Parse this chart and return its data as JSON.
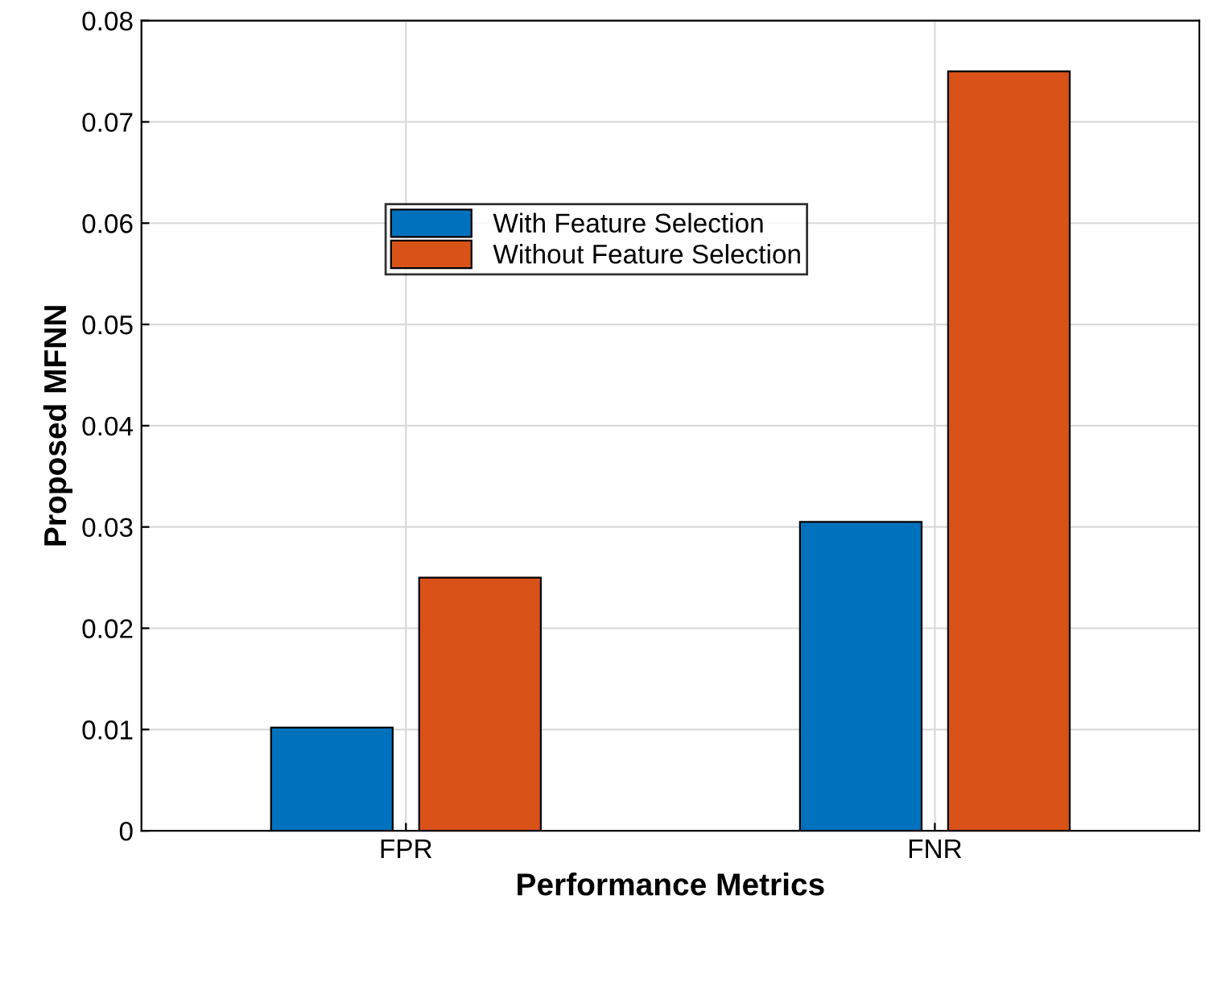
{
  "chart_data": {
    "type": "bar",
    "xlabel": "Performance Metrics",
    "ylabel": "Proposed MFNN",
    "categories": [
      "FPR",
      "FNR"
    ],
    "series": [
      {
        "name": "With Feature Selection",
        "color": "#0072bd",
        "values": [
          0.0102,
          0.0305
        ]
      },
      {
        "name": "Without Feature Selection",
        "color": "#d95319",
        "values": [
          0.025,
          0.075
        ]
      }
    ],
    "ylim": [
      0,
      0.08
    ],
    "yticks": [
      0,
      0.01,
      0.02,
      0.03,
      0.04,
      0.05,
      0.06,
      0.07,
      0.08
    ],
    "grid": true,
    "legend": "top"
  }
}
